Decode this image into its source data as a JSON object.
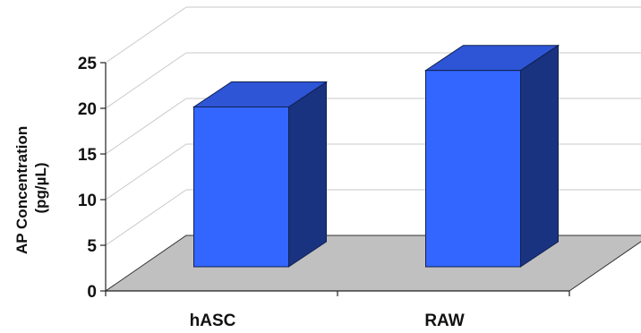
{
  "chart_data": {
    "type": "bar",
    "categories": [
      "hASC",
      "RAW"
    ],
    "values": [
      17.5,
      21.5
    ],
    "ylabel_line1": "AP Concentration",
    "ylabel_line2": "(pg/µL)",
    "xlabel": "",
    "ylim": [
      0,
      25
    ],
    "yticks": [
      0,
      5,
      10,
      15,
      20,
      25
    ],
    "grid": true,
    "three_d": true,
    "colors": {
      "bar_front": "#3366ff",
      "bar_top": "#2d55d6",
      "bar_side": "#1a3380",
      "floor": "#c0c0c0",
      "grid": "#c8c8c8",
      "axis": "#222222"
    }
  }
}
